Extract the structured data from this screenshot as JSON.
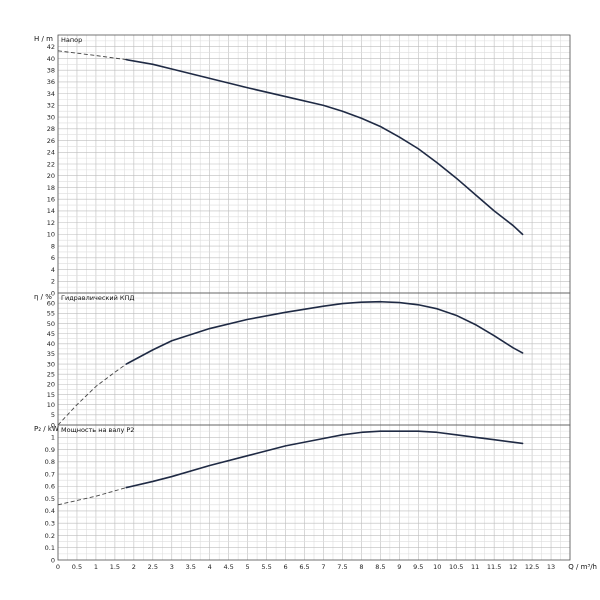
{
  "chart_data": {
    "type": "line",
    "x_axis": {
      "label": "Q / m³/h",
      "range": [
        0,
        13.5
      ],
      "ticks": [
        0,
        0.5,
        1,
        1.5,
        2,
        2.5,
        3,
        3.5,
        4,
        4.5,
        5,
        5.5,
        6,
        6.5,
        7,
        7.5,
        8,
        8.5,
        9,
        9.5,
        10,
        10.5,
        11,
        11.5,
        12,
        12.5,
        13
      ],
      "tick_labels": [
        "0",
        "0.5",
        "1",
        "1.5",
        "2",
        "2.5",
        "3",
        "3.5",
        "4",
        "4.5",
        "5",
        "5.5",
        "6",
        "6.5",
        "7",
        "7.5",
        "8",
        "8.5",
        "9",
        "9.5",
        "10",
        "10.5",
        "11",
        "11.5",
        "12",
        "12.5",
        "13"
      ]
    },
    "grid": true,
    "panels": [
      {
        "title": "Напор",
        "ylabel": "H / m",
        "ylim": [
          0,
          44
        ],
        "yticks": [
          0,
          2,
          4,
          6,
          8,
          10,
          12,
          14,
          16,
          18,
          20,
          22,
          24,
          26,
          28,
          30,
          32,
          34,
          36,
          38,
          40,
          42
        ],
        "ytick_labels": [
          "0",
          "2",
          "4",
          "6",
          "8",
          "10",
          "12",
          "14",
          "16",
          "18",
          "20",
          "22",
          "24",
          "26",
          "28",
          "30",
          "32",
          "34",
          "36",
          "38",
          "40",
          "42"
        ],
        "dashed_segment": [
          [
            0,
            41.3
          ],
          [
            1,
            40.5
          ],
          [
            1.8,
            39.8
          ]
        ],
        "solid_segment": [
          [
            1.8,
            39.8
          ],
          [
            2.5,
            39.0
          ],
          [
            3,
            38.2
          ],
          [
            4,
            36.6
          ],
          [
            5,
            35.0
          ],
          [
            6,
            33.5
          ],
          [
            7,
            32.0
          ],
          [
            7.5,
            31.0
          ],
          [
            8,
            29.8
          ],
          [
            8.5,
            28.4
          ],
          [
            9,
            26.6
          ],
          [
            9.5,
            24.6
          ],
          [
            10,
            22.2
          ],
          [
            10.5,
            19.6
          ],
          [
            11,
            16.8
          ],
          [
            11.5,
            14.0
          ],
          [
            12,
            11.5
          ],
          [
            12.25,
            10.0
          ]
        ]
      },
      {
        "title": "Гидравлический КПД",
        "ylabel": "η / %",
        "ylim": [
          0,
          65
        ],
        "yticks": [
          0,
          5,
          10,
          15,
          20,
          25,
          30,
          35,
          40,
          45,
          50,
          55,
          60
        ],
        "ytick_labels": [
          "0",
          "5",
          "10",
          "15",
          "20",
          "25",
          "30",
          "35",
          "40",
          "45",
          "50",
          "55",
          "60"
        ],
        "dashed_segment": [
          [
            0,
            0
          ],
          [
            0.5,
            10
          ],
          [
            1,
            19
          ],
          [
            1.5,
            26
          ],
          [
            1.8,
            30
          ]
        ],
        "solid_segment": [
          [
            1.8,
            30
          ],
          [
            2.5,
            37
          ],
          [
            3,
            41.5
          ],
          [
            4,
            47.5
          ],
          [
            5,
            52
          ],
          [
            6,
            55.5
          ],
          [
            7,
            58.5
          ],
          [
            7.5,
            59.8
          ],
          [
            8,
            60.5
          ],
          [
            8.5,
            60.7
          ],
          [
            9,
            60.3
          ],
          [
            9.5,
            59.2
          ],
          [
            10,
            57.2
          ],
          [
            10.5,
            54.0
          ],
          [
            11,
            49.5
          ],
          [
            11.5,
            44.0
          ],
          [
            12,
            38.0
          ],
          [
            12.25,
            35.5
          ]
        ]
      },
      {
        "title": "Мощность на валу P2",
        "ylabel": "P₂ / kW",
        "ylim": [
          0,
          1.1
        ],
        "yticks": [
          0,
          0.1,
          0.2,
          0.3,
          0.4,
          0.5,
          0.6,
          0.7,
          0.8,
          0.9,
          1
        ],
        "ytick_labels": [
          "0",
          "0.1",
          "0.2",
          "0.3",
          "0.4",
          "0.5",
          "0.6",
          "0.7",
          "0.8",
          "0.9",
          "1"
        ],
        "dashed_segment": [
          [
            0,
            0.45
          ],
          [
            1,
            0.52
          ],
          [
            1.8,
            0.59
          ]
        ],
        "solid_segment": [
          [
            1.8,
            0.59
          ],
          [
            2.5,
            0.64
          ],
          [
            3,
            0.68
          ],
          [
            4,
            0.77
          ],
          [
            5,
            0.85
          ],
          [
            6,
            0.93
          ],
          [
            7,
            0.99
          ],
          [
            7.5,
            1.02
          ],
          [
            8,
            1.04
          ],
          [
            8.5,
            1.05
          ],
          [
            9,
            1.05
          ],
          [
            9.5,
            1.05
          ],
          [
            10,
            1.04
          ],
          [
            10.5,
            1.02
          ],
          [
            11,
            1.0
          ],
          [
            11.5,
            0.98
          ],
          [
            12,
            0.96
          ],
          [
            12.25,
            0.95
          ]
        ]
      }
    ]
  }
}
